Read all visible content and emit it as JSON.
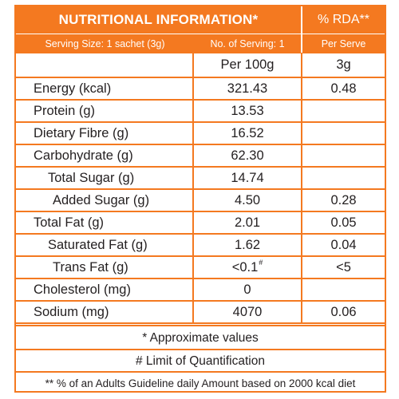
{
  "header": {
    "title": "NUTRITIONAL INFORMATION*",
    "rda": "% RDA**"
  },
  "subheader": {
    "serving_size": "Serving Size: 1 sachet (3g)",
    "num_servings": "No. of Serving: 1",
    "per_serve": "Per Serve"
  },
  "columns": {
    "per_100g": "Per 100g",
    "per_serve_amount": "3g"
  },
  "rows": [
    {
      "label": "Energy (kcal)",
      "per100": "321.43",
      "rda": "0.48"
    },
    {
      "label": "Protein (g)",
      "per100": "13.53",
      "rda": ""
    },
    {
      "label": "Dietary Fibre (g)",
      "per100": "16.52",
      "rda": ""
    },
    {
      "label": "Carbohydrate (g)",
      "per100": "62.30",
      "rda": ""
    },
    {
      "label": "Total Sugar (g)",
      "per100": "14.74",
      "rda": ""
    },
    {
      "label": "Added Sugar (g)",
      "per100": "4.50",
      "rda": "0.28"
    },
    {
      "label": "Total Fat (g)",
      "per100": "2.01",
      "rda": "0.05"
    },
    {
      "label": "Saturated Fat (g)",
      "per100": "1.62",
      "rda": "0.04"
    },
    {
      "label": "Trans Fat (g)",
      "per100": "<0.1",
      "per100_mark": "#",
      "rda": "<5"
    },
    {
      "label": "Cholesterol (mg)",
      "per100": "0",
      "rda": ""
    },
    {
      "label": "Sodium (mg)",
      "per100": "4070",
      "rda": "0.06"
    }
  ],
  "notes": {
    "approx": "* Approximate values",
    "limit": "# Limit of Quantification",
    "rda_basis": "** % of an Adults Guideline daily Amount based on 2000 kcal diet"
  },
  "colors": {
    "accent": "#f47920",
    "text": "#231f20"
  }
}
